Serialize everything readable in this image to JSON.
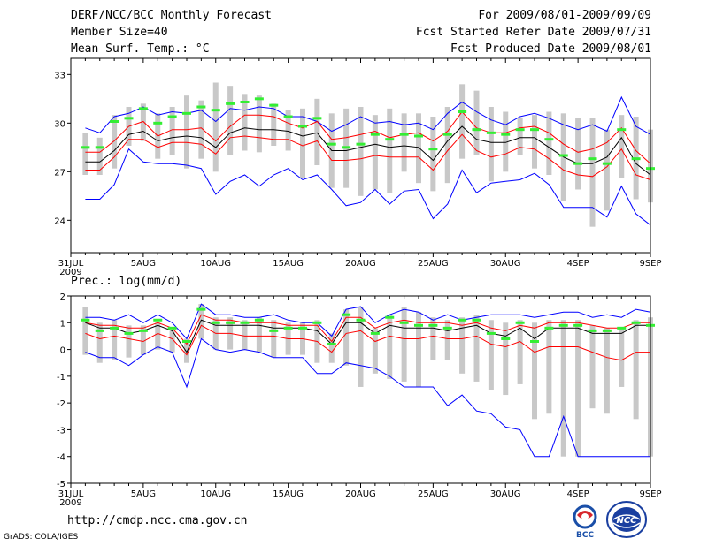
{
  "header": {
    "title": "DERF/NCC/BCC Monthly Forecast",
    "member_size": "Member Size=40",
    "variable_1": "Mean Surf. Temp.: °C",
    "period": "For 2009/08/01-2009/09/09",
    "start_date": "Fcst Started Refer Date 2009/07/31",
    "produced_date": "Fcst Produced Date 2009/08/01"
  },
  "footer": {
    "url": "http://cmdp.ncc.cma.gov.cn",
    "grads": "GrADS: COLA/IGES",
    "logo_left": "BCC",
    "logo_right": "NCC"
  },
  "colors": {
    "max_min": "#0000ff",
    "mean": "#000000",
    "spread": "#ff0000",
    "bar": "#c8c8c8",
    "obs": "#33ee33"
  },
  "x_ticks": [
    {
      "day": 0,
      "label": "31JUL",
      "sub": "2009"
    },
    {
      "day": 5,
      "label": "5AUG"
    },
    {
      "day": 10,
      "label": "10AUG"
    },
    {
      "day": 15,
      "label": "15AUG"
    },
    {
      "day": 20,
      "label": "20AUG"
    },
    {
      "day": 25,
      "label": "25AUG"
    },
    {
      "day": 30,
      "label": "30AUG"
    },
    {
      "day": 35,
      "label": "4SEP"
    },
    {
      "day": 40,
      "label": "9SEP"
    }
  ],
  "chart_data": [
    {
      "type": "line",
      "title": "Mean Surf. Temp.: °C",
      "x": [
        1,
        2,
        3,
        4,
        5,
        6,
        7,
        8,
        9,
        10,
        11,
        12,
        13,
        14,
        15,
        16,
        17,
        18,
        19,
        20,
        21,
        22,
        23,
        24,
        25,
        26,
        27,
        28,
        29,
        30,
        31,
        32,
        33,
        34,
        35,
        36,
        37,
        38,
        39,
        40
      ],
      "xlim": [
        0,
        40
      ],
      "ylim": [
        22,
        34
      ],
      "yticks": [
        24,
        27,
        30,
        33
      ],
      "series": [
        {
          "name": "max",
          "values": [
            29.7,
            29.4,
            30.4,
            30.6,
            31.0,
            30.5,
            30.7,
            30.6,
            30.8,
            30.1,
            30.9,
            30.8,
            31.0,
            30.9,
            30.4,
            30.4,
            30.1,
            29.5,
            29.9,
            30.4,
            30.0,
            30.1,
            29.9,
            30.0,
            29.6,
            30.6,
            31.3,
            30.7,
            30.2,
            29.9,
            30.4,
            30.6,
            30.3,
            29.9,
            29.6,
            29.9,
            29.5,
            31.6,
            29.8,
            29.3
          ]
        },
        {
          "name": "upper",
          "values": [
            28.2,
            28.2,
            28.9,
            29.8,
            30.1,
            29.2,
            29.6,
            29.6,
            29.7,
            28.9,
            29.8,
            30.5,
            30.5,
            30.4,
            30.0,
            29.7,
            30.1,
            29.0,
            29.1,
            29.3,
            29.5,
            29.1,
            29.3,
            29.4,
            28.9,
            29.5,
            30.7,
            29.7,
            29.4,
            29.4,
            29.7,
            29.8,
            29.4,
            28.7,
            28.2,
            28.4,
            28.8,
            29.7,
            28.3,
            27.5
          ]
        },
        {
          "name": "mean",
          "values": [
            27.6,
            27.6,
            28.3,
            29.3,
            29.5,
            28.9,
            29.1,
            29.2,
            29.1,
            28.5,
            29.4,
            29.7,
            29.6,
            29.6,
            29.5,
            29.2,
            29.4,
            28.3,
            28.3,
            28.5,
            28.7,
            28.5,
            28.6,
            28.5,
            27.7,
            28.9,
            29.8,
            29.0,
            28.8,
            28.8,
            29.1,
            29.1,
            28.5,
            27.9,
            27.5,
            27.5,
            27.9,
            29.1,
            27.5,
            26.8
          ]
        },
        {
          "name": "lower",
          "values": [
            27.1,
            27.1,
            27.9,
            29.0,
            29.0,
            28.5,
            28.8,
            28.8,
            28.7,
            28.1,
            29.1,
            29.2,
            29.1,
            29.0,
            29.0,
            28.6,
            28.9,
            27.7,
            27.7,
            27.8,
            28.0,
            27.9,
            27.9,
            27.9,
            27.1,
            28.3,
            29.3,
            28.3,
            27.9,
            28.1,
            28.5,
            28.4,
            27.8,
            27.1,
            26.8,
            26.7,
            27.3,
            28.4,
            26.8,
            26.5
          ]
        },
        {
          "name": "min",
          "values": [
            25.3,
            25.3,
            26.2,
            28.4,
            27.6,
            27.5,
            27.5,
            27.4,
            27.2,
            25.6,
            26.4,
            26.8,
            26.1,
            26.8,
            27.2,
            26.5,
            26.8,
            25.9,
            24.9,
            25.1,
            25.9,
            25.0,
            25.8,
            25.9,
            24.1,
            25.0,
            27.1,
            25.7,
            26.3,
            26.4,
            26.5,
            26.9,
            26.2,
            24.8,
            24.8,
            24.8,
            24.2,
            26.1,
            24.4,
            23.7
          ]
        },
        {
          "name": "bar_high",
          "values": [
            29.4,
            29.1,
            30.5,
            31.0,
            31.2,
            30.6,
            31.0,
            31.7,
            31.4,
            32.5,
            32.3,
            31.8,
            31.7,
            31.2,
            30.8,
            30.9,
            31.5,
            30.6,
            30.9,
            31.0,
            30.5,
            30.9,
            30.6,
            30.6,
            30.4,
            31.0,
            32.4,
            32.0,
            31.0,
            30.7,
            30.3,
            30.5,
            30.7,
            30.6,
            30.3,
            30.3,
            29.6,
            30.5,
            30.4,
            29.6
          ]
        },
        {
          "name": "bar_low",
          "values": [
            26.8,
            26.8,
            27.2,
            28.6,
            28.9,
            27.8,
            28.0,
            27.2,
            27.8,
            27.0,
            28.0,
            28.3,
            28.2,
            28.6,
            28.3,
            26.6,
            27.4,
            26.0,
            26.0,
            25.5,
            25.9,
            25.7,
            27.0,
            26.3,
            25.8,
            26.3,
            27.8,
            28.0,
            26.4,
            27.0,
            28.0,
            27.2,
            26.8,
            25.2,
            25.9,
            23.6,
            24.6,
            26.6,
            25.3,
            25.1
          ]
        },
        {
          "name": "obs",
          "values": [
            28.5,
            28.5,
            30.1,
            30.3,
            30.9,
            30.0,
            30.4,
            30.6,
            31.0,
            30.8,
            31.2,
            31.3,
            31.5,
            31.1,
            30.4,
            29.8,
            30.3,
            28.7,
            28.5,
            28.7,
            29.3,
            29.0,
            29.3,
            29.2,
            28.4,
            29.3,
            30.7,
            29.6,
            29.4,
            29.3,
            29.6,
            29.6,
            29.0,
            28.0,
            27.5,
            27.8,
            27.5,
            29.6,
            27.8,
            27.2
          ]
        }
      ]
    },
    {
      "type": "line",
      "title": "Prec.: log(mm/d)",
      "x": [
        1,
        2,
        3,
        4,
        5,
        6,
        7,
        8,
        9,
        10,
        11,
        12,
        13,
        14,
        15,
        16,
        17,
        18,
        19,
        20,
        21,
        22,
        23,
        24,
        25,
        26,
        27,
        28,
        29,
        30,
        31,
        32,
        33,
        34,
        35,
        36,
        37,
        38,
        39,
        40
      ],
      "xlim": [
        0,
        40
      ],
      "ylim": [
        -5,
        2
      ],
      "yticks": [
        -5,
        -4,
        -3,
        -2,
        -1,
        0,
        1,
        2
      ],
      "series": [
        {
          "name": "max",
          "values": [
            1.2,
            1.2,
            1.1,
            1.3,
            1.0,
            1.3,
            1.0,
            0.4,
            1.7,
            1.3,
            1.3,
            1.2,
            1.2,
            1.3,
            1.1,
            1.0,
            1.0,
            0.5,
            1.5,
            1.6,
            1.0,
            1.3,
            1.5,
            1.4,
            1.1,
            1.3,
            1.1,
            1.2,
            1.3,
            1.3,
            1.3,
            1.2,
            1.3,
            1.4,
            1.4,
            1.2,
            1.3,
            1.2,
            1.5,
            1.4
          ]
        },
        {
          "name": "upper",
          "values": [
            1.0,
            0.9,
            0.9,
            0.8,
            0.8,
            1.0,
            0.8,
            0.2,
            1.3,
            1.1,
            1.1,
            1.0,
            1.0,
            1.0,
            0.9,
            0.9,
            0.9,
            0.3,
            1.2,
            1.2,
            0.8,
            1.0,
            1.1,
            1.0,
            1.0,
            1.0,
            0.9,
            1.0,
            0.8,
            0.7,
            0.9,
            0.8,
            1.0,
            1.0,
            1.0,
            0.9,
            0.8,
            0.8,
            1.0,
            1.0
          ]
        },
        {
          "name": "mean",
          "values": [
            1.0,
            0.8,
            0.8,
            0.6,
            0.7,
            0.9,
            0.7,
            -0.1,
            1.1,
            0.9,
            0.9,
            0.9,
            0.9,
            0.8,
            0.8,
            0.8,
            0.7,
            0.2,
            1.0,
            1.0,
            0.6,
            0.9,
            0.8,
            0.8,
            0.8,
            0.7,
            0.8,
            0.9,
            0.6,
            0.5,
            0.8,
            0.4,
            0.8,
            0.8,
            0.8,
            0.6,
            0.6,
            0.6,
            0.9,
            0.9
          ]
        },
        {
          "name": "lower",
          "values": [
            0.6,
            0.4,
            0.5,
            0.4,
            0.3,
            0.6,
            0.4,
            -0.2,
            0.9,
            0.6,
            0.6,
            0.5,
            0.5,
            0.5,
            0.4,
            0.4,
            0.3,
            -0.1,
            0.6,
            0.7,
            0.3,
            0.5,
            0.4,
            0.4,
            0.5,
            0.4,
            0.4,
            0.5,
            0.2,
            0.1,
            0.3,
            -0.1,
            0.1,
            0.1,
            0.1,
            -0.1,
            -0.3,
            -0.4,
            -0.1,
            -0.1
          ]
        },
        {
          "name": "min",
          "values": [
            -0.1,
            -0.3,
            -0.3,
            -0.6,
            -0.2,
            0.1,
            -0.1,
            -1.4,
            0.4,
            0.0,
            -0.1,
            0.0,
            -0.1,
            -0.3,
            -0.3,
            -0.3,
            -0.9,
            -0.9,
            -0.5,
            -0.6,
            -0.7,
            -1.0,
            -1.4,
            -1.4,
            -1.4,
            -2.1,
            -1.7,
            -2.3,
            -2.4,
            -2.9,
            -3.0,
            -4.0,
            -4.0,
            -2.5,
            -4.0,
            -4.0,
            -4.0,
            -4.0,
            -4.0,
            -4.0
          ]
        },
        {
          "name": "bar_high",
          "values": [
            1.6,
            1.0,
            1.1,
            0.9,
            0.9,
            1.0,
            0.7,
            0.4,
            1.7,
            1.2,
            1.2,
            1.1,
            1.2,
            1.1,
            1.0,
            1.0,
            1.1,
            0.6,
            1.5,
            1.6,
            0.8,
            1.3,
            1.6,
            1.4,
            1.2,
            1.1,
            1.2,
            1.3,
            1.1,
            1.0,
            1.1,
            1.0,
            1.1,
            1.1,
            1.1,
            0.9,
            0.8,
            0.8,
            1.1,
            1.2
          ]
        },
        {
          "name": "bar_low",
          "values": [
            -0.2,
            -0.5,
            -0.4,
            -0.3,
            -0.2,
            0.0,
            -0.1,
            -0.5,
            0.4,
            0.0,
            0.0,
            0.0,
            -0.1,
            -0.3,
            -0.2,
            -0.2,
            -0.5,
            -0.5,
            -0.6,
            -1.4,
            -0.9,
            -1.1,
            -1.2,
            -1.4,
            -0.4,
            -0.4,
            -0.9,
            -1.2,
            -1.5,
            -1.7,
            -1.3,
            -2.6,
            -2.4,
            -4.0,
            -4.0,
            -2.2,
            -2.4,
            -1.4,
            -2.6,
            -4.0
          ]
        },
        {
          "name": "obs",
          "values": [
            1.1,
            0.7,
            0.8,
            0.6,
            0.7,
            1.1,
            0.8,
            0.3,
            1.5,
            1.0,
            1.0,
            1.0,
            1.1,
            0.7,
            0.8,
            0.8,
            1.0,
            0.2,
            1.3,
            1.1,
            0.6,
            1.2,
            1.0,
            0.9,
            0.9,
            0.8,
            1.1,
            1.1,
            0.6,
            0.4,
            1.0,
            0.3,
            0.8,
            0.9,
            0.9,
            0.7,
            0.7,
            0.8,
            1.0,
            0.9
          ]
        }
      ]
    }
  ]
}
